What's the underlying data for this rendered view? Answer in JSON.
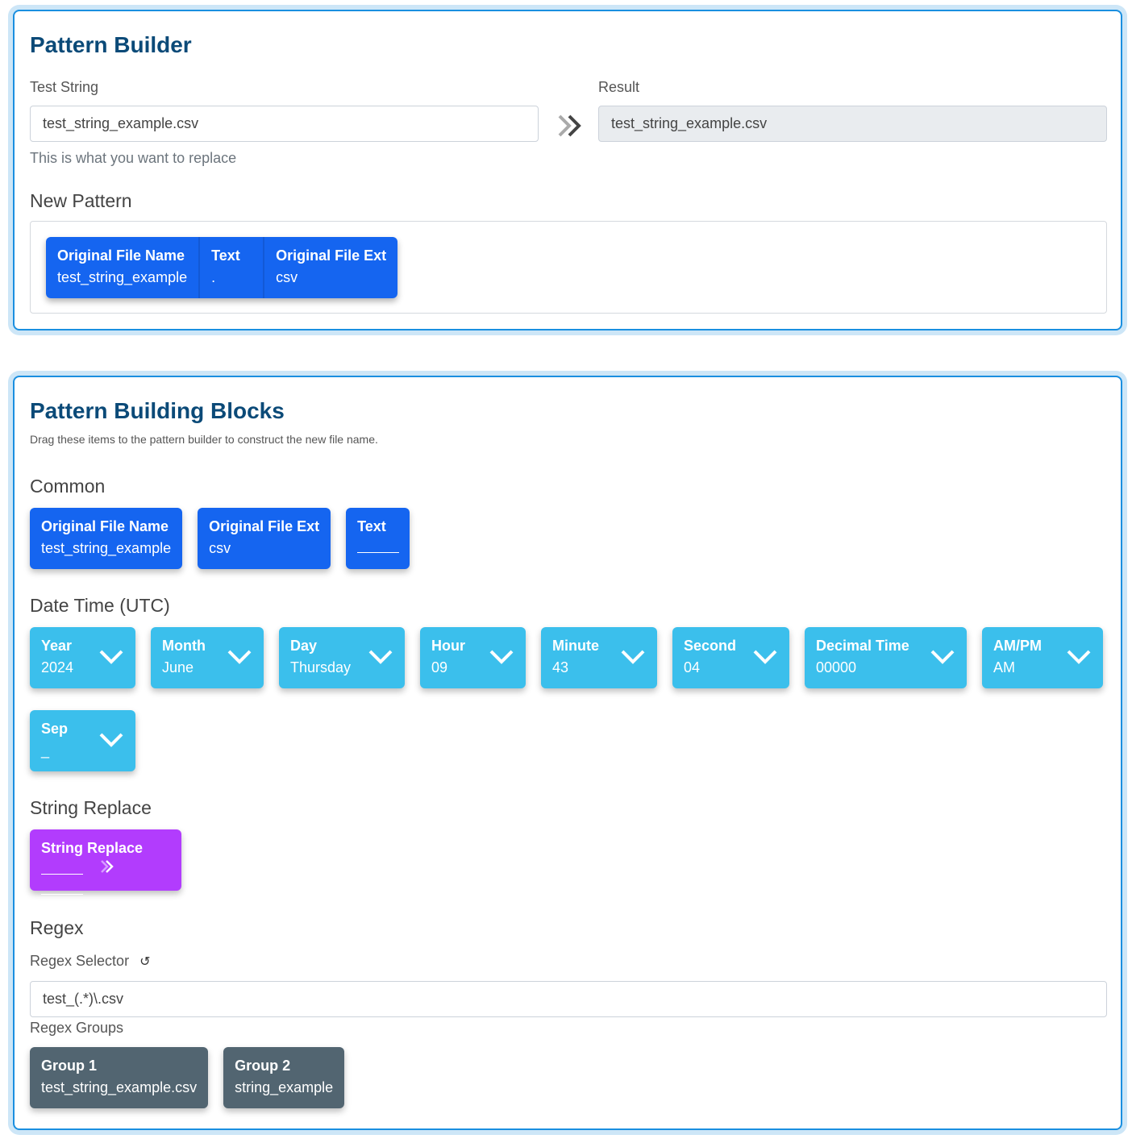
{
  "builder": {
    "title": "Pattern Builder",
    "test_label": "Test String",
    "test_value": "test_string_example.csv",
    "test_help": "This is what you want to replace",
    "result_label": "Result",
    "result_value": "test_string_example.csv",
    "new_pattern_label": "New Pattern",
    "pattern": [
      {
        "title": "Original File Name",
        "value": "test_string_example"
      },
      {
        "title": "Text",
        "value": "."
      },
      {
        "title": "Original File Ext",
        "value": "csv"
      }
    ]
  },
  "blocks": {
    "title": "Pattern Building Blocks",
    "subtitle": "Drag these items to the pattern builder to construct the new file name.",
    "common_label": "Common",
    "common": [
      {
        "title": "Original File Name",
        "value": "test_string_example"
      },
      {
        "title": "Original File Ext",
        "value": "csv"
      },
      {
        "title": "Text",
        "value": ""
      }
    ],
    "datetime_label": "Date Time (UTC)",
    "datetime": [
      {
        "title": "Year",
        "value": "2024"
      },
      {
        "title": "Month",
        "value": "June"
      },
      {
        "title": "Day",
        "value": "Thursday"
      },
      {
        "title": "Hour",
        "value": "09"
      },
      {
        "title": "Minute",
        "value": "43"
      },
      {
        "title": "Second",
        "value": "04"
      },
      {
        "title": "Decimal Time",
        "value": "00000"
      },
      {
        "title": "AM/PM",
        "value": "AM"
      },
      {
        "title": "Sep",
        "value": "_"
      }
    ],
    "string_replace_label": "String Replace",
    "string_replace_title": "String Replace",
    "regex_label": "Regex",
    "regex_selector_label": "Regex Selector",
    "regex_value": "test_(.*)\\.csv",
    "regex_groups_label": "Regex Groups",
    "groups": [
      {
        "title": "Group 1",
        "value": "test_string_example.csv"
      },
      {
        "title": "Group 2",
        "value": "string_example"
      }
    ]
  },
  "colors": {
    "primary": "#1565f0",
    "info": "#3bbfec",
    "purple": "#b23cfd",
    "slate": "#526571"
  }
}
